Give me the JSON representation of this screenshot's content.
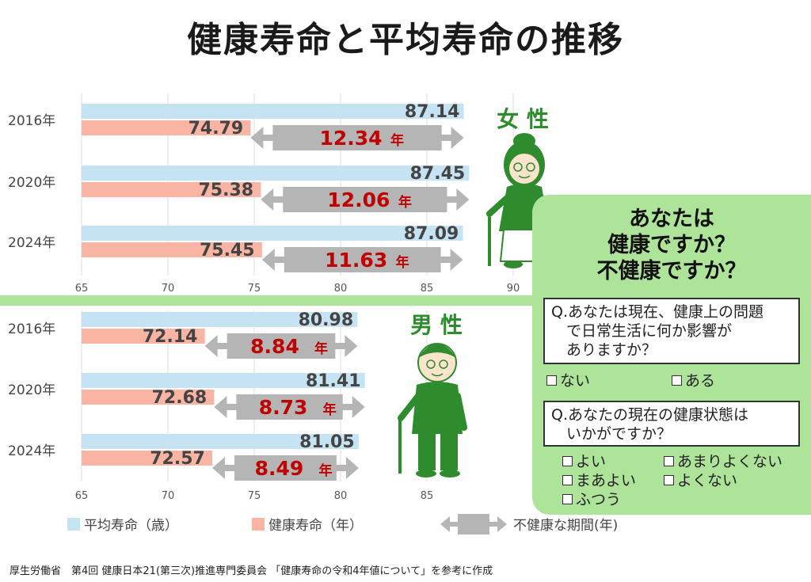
{
  "title": "健康寿命と平均寿命の推移",
  "chart_data": [
    {
      "type": "bar",
      "group_label": "女 性",
      "categories": [
        "2016年",
        "2020年",
        "2024年"
      ],
      "series": [
        {
          "name": "平均寿命（歳）",
          "values": [
            87.14,
            87.45,
            87.09
          ],
          "color": "#c5e3f2"
        },
        {
          "name": "健康寿命（年）",
          "values": [
            74.79,
            75.38,
            75.45
          ],
          "color": "#f9b4a4"
        }
      ],
      "gap_values": [
        "12.34",
        "12.06",
        "11.63"
      ],
      "gap_unit": "年",
      "xlim": [
        65,
        90
      ],
      "x_ticks": [
        "65",
        "70",
        "75",
        "80",
        "85",
        "90"
      ],
      "grid": true
    },
    {
      "type": "bar",
      "group_label": "男 性",
      "categories": [
        "2016年",
        "2020年",
        "2024年"
      ],
      "series": [
        {
          "name": "平均寿命（歳）",
          "values": [
            80.98,
            81.41,
            81.05
          ],
          "color": "#c5e3f2"
        },
        {
          "name": "健康寿命（年）",
          "values": [
            72.14,
            72.68,
            72.57
          ],
          "color": "#f9b4a4"
        }
      ],
      "gap_values": [
        "8.84",
        "8.73",
        "8.49"
      ],
      "gap_unit": "年",
      "xlim": [
        65,
        85
      ],
      "x_ticks": [
        "65",
        "70",
        "75",
        "80",
        "85"
      ],
      "grid": true
    }
  ],
  "legend": {
    "items": [
      "平均寿命（歳）",
      "健康寿命（年）",
      "不健康な期間(年)"
    ],
    "colors": [
      "#c5e3f2",
      "#f9b4a4",
      "#b5b5b5"
    ]
  },
  "colors": {
    "divider": "#aee39a",
    "gap_arrow": "#b5b5b5",
    "gap_text": "#c00000",
    "label_green": "#2e8b2e",
    "value_text": "#444444"
  },
  "icons": [
    "elderly-woman-icon",
    "elderly-man-icon",
    "checkbox-icon"
  ],
  "question_panel": {
    "heading": "あなたは\n健康ですか？\n不健康ですか？",
    "q1": "Q.あなたは現在、健康上の問題\n　で日常生活に何か影響が\n　ありますか？",
    "q1_options": [
      "ない",
      "ある"
    ],
    "q2": "Q.あなたの現在の健康状態は\n　いかがですか？",
    "q2_options": [
      "よい",
      "あまりよくない",
      "まあよい",
      "よくない",
      "ふつう"
    ]
  },
  "source": "厚生労働省　第4回 健康日本21(第三次)推進専門委員会 「健康寿命の令和4年値について」を参考に作成"
}
